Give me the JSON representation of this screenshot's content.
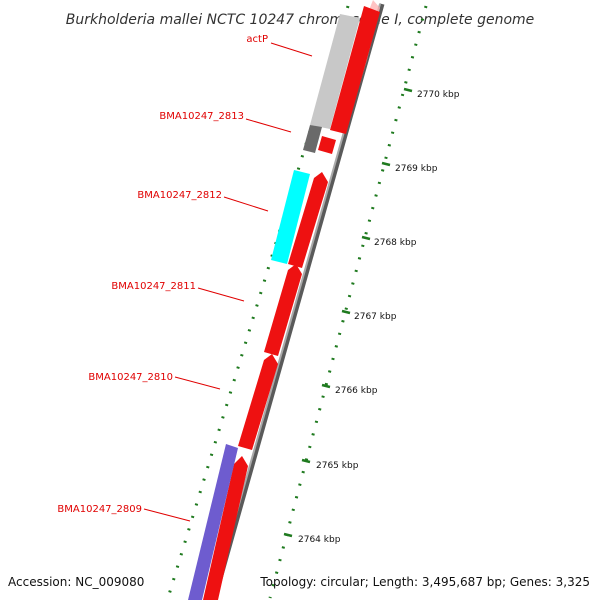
{
  "title": "Burkholderia mallei NCTC 10247 chromosome I, complete genome",
  "accession": "Accession: NC_009080",
  "summary": "Topology: circular; Length: 3,495,687 bp; Genes: 3,325",
  "gene_labels": [
    {
      "text": "actP",
      "feature": "actP"
    },
    {
      "text": "BMA10247_2813",
      "feature": "BMA10247_2813"
    },
    {
      "text": "BMA10247_2812",
      "feature": "BMA10247_2812"
    },
    {
      "text": "BMA10247_2811",
      "feature": "BMA10247_2811"
    },
    {
      "text": "BMA10247_2810",
      "feature": "BMA10247_2810"
    },
    {
      "text": "BMA10247_2809",
      "feature": "BMA10247_2809"
    }
  ],
  "kbp_ticks": [
    "2770 kbp",
    "2769 kbp",
    "2768 kbp",
    "2767 kbp",
    "2766 kbp",
    "2765 kbp",
    "2764 kbp"
  ],
  "colors": {
    "gene_red": "#ee1111",
    "cyan": "#00ffff",
    "purple": "#6e5ccf",
    "light_gray": "#c8c8c8",
    "dark_gray": "#6a6a6a",
    "tick_green": "#1f7a1f",
    "label_red": "#e00000",
    "backbone": "#888888"
  }
}
